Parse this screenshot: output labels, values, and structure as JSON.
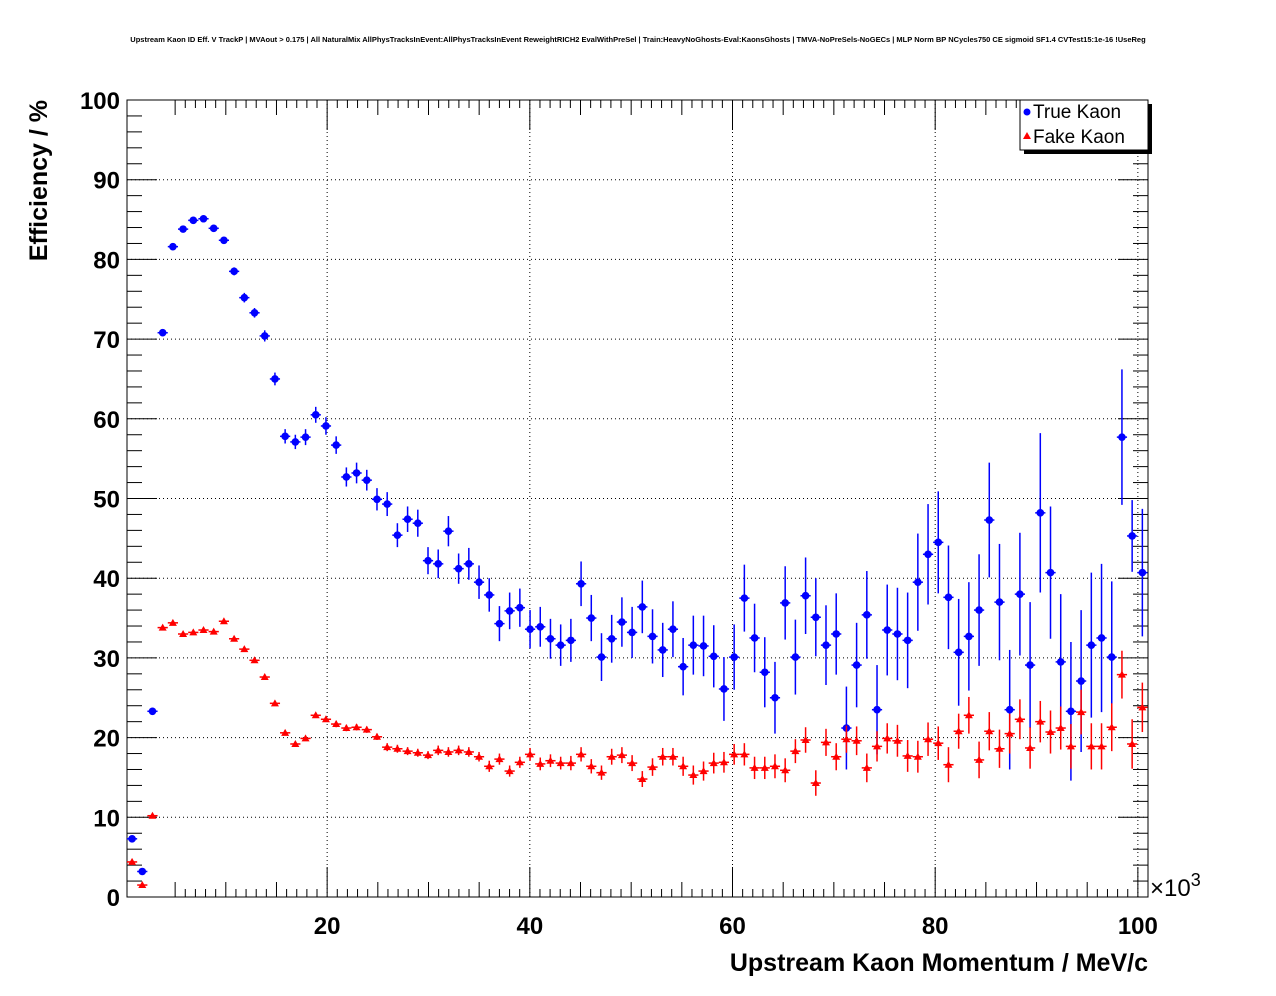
{
  "chart_data": {
    "type": "scatter",
    "title": "Upstream Kaon ID Eff. V TrackP | MVAout > 0.175 | All NaturalMix AllPhysTracksInEvent:AllPhysTracksInEvent ReweightRICH2 EvalWithPreSel | Train:HeavyNoGhosts-Eval:KaonsGhosts | TMVA-NoPreSels-NoGECs | MLP Norm BP NCycles750 CE sigmoid SF1.4 CVTest15:1e-16 !UseReg",
    "xlabel": "Upstream Kaon Momentum / MeV/c",
    "ylabel": "Efficiency / %",
    "x_multiplier": "×10",
    "x_multiplier_exp": "3",
    "xlim": [
      0.25,
      101.0
    ],
    "ylim": [
      0,
      100
    ],
    "xticks": [
      "20",
      "40",
      "60",
      "80",
      "100"
    ],
    "yticks": [
      "0",
      "10",
      "20",
      "30",
      "40",
      "50",
      "60",
      "70",
      "80",
      "90",
      "100"
    ],
    "grid": true,
    "legend_position": "top-right",
    "x_start": 0.75,
    "bin_width": 1.007,
    "series": [
      {
        "name": "True Kaon",
        "color": "#0000ff",
        "marker": "circle",
        "values": [
          7.3,
          3.2,
          23.3,
          70.8,
          81.6,
          83.8,
          84.9,
          85.1,
          83.9,
          82.4,
          78.5,
          75.2,
          73.3,
          70.4,
          65.0,
          57.8,
          57.1,
          57.7,
          60.5,
          59.1,
          56.7,
          52.7,
          53.2,
          52.3,
          49.9,
          49.3,
          45.4,
          47.4,
          46.9,
          42.2,
          41.8,
          45.9,
          41.2,
          41.8,
          39.5,
          37.9,
          34.3,
          35.9,
          36.3,
          33.6,
          33.9,
          32.4,
          31.6,
          32.2,
          39.3,
          35.0,
          30.1,
          32.4,
          34.5,
          33.2,
          36.4,
          32.7,
          31.0,
          33.6,
          28.9,
          31.6,
          31.5,
          30.2,
          26.1,
          30.1,
          37.5,
          32.5,
          28.2,
          25.0,
          36.9,
          30.1,
          37.8,
          35.1,
          31.6,
          33.0,
          21.2,
          29.1,
          35.4,
          23.5,
          33.5,
          33.0,
          32.2,
          39.5,
          43.0,
          44.5,
          37.6,
          30.7,
          32.7,
          36.0,
          47.3,
          37.0,
          23.5,
          38.0,
          29.1,
          48.2,
          40.7,
          29.5,
          23.3,
          27.1,
          31.6,
          32.5,
          30.1,
          57.7,
          45.3,
          40.7
        ],
        "errors": [
          0.4,
          0.3,
          0.4,
          0.4,
          0.4,
          0.4,
          0.4,
          0.4,
          0.4,
          0.4,
          0.5,
          0.6,
          0.6,
          0.7,
          0.8,
          0.9,
          0.9,
          1.0,
          1.0,
          1.1,
          1.1,
          1.2,
          1.3,
          1.3,
          1.4,
          1.5,
          1.5,
          1.6,
          1.7,
          1.7,
          1.8,
          1.9,
          1.9,
          2.0,
          2.1,
          2.1,
          2.2,
          2.3,
          2.4,
          2.4,
          2.5,
          2.5,
          2.6,
          2.7,
          2.8,
          2.9,
          3.0,
          3.0,
          3.1,
          3.2,
          3.3,
          3.4,
          3.4,
          3.5,
          3.6,
          3.7,
          3.8,
          3.9,
          4.0,
          4.1,
          4.2,
          4.3,
          4.4,
          4.5,
          4.6,
          4.7,
          4.8,
          4.9,
          5.0,
          5.1,
          5.2,
          5.3,
          5.5,
          5.6,
          5.7,
          5.8,
          6.0,
          6.1,
          6.3,
          6.4,
          6.5,
          6.7,
          6.8,
          7.0,
          7.2,
          7.3,
          7.5,
          7.7,
          7.9,
          10.0,
          8.3,
          8.5,
          8.7,
          8.9,
          9.1,
          9.3,
          9.5,
          8.5,
          4.5,
          8.0
        ]
      },
      {
        "name": "Fake Kaon",
        "color": "#ff0000",
        "marker": "triangle",
        "values": [
          4.4,
          1.5,
          10.2,
          33.8,
          34.4,
          33.0,
          33.2,
          33.5,
          33.3,
          34.6,
          32.4,
          31.1,
          29.7,
          27.6,
          24.3,
          20.6,
          19.2,
          19.9,
          22.8,
          22.3,
          21.7,
          21.2,
          21.3,
          21.0,
          20.1,
          18.8,
          18.6,
          18.3,
          18.1,
          17.8,
          18.4,
          18.2,
          18.4,
          18.2,
          17.6,
          16.4,
          17.3,
          15.8,
          16.9,
          17.9,
          16.7,
          17.1,
          16.8,
          16.8,
          17.9,
          16.4,
          15.6,
          17.6,
          17.8,
          16.8,
          14.8,
          16.3,
          17.6,
          17.6,
          16.4,
          15.3,
          15.8,
          16.8,
          16.9,
          17.9,
          17.9,
          16.2,
          16.2,
          16.4,
          15.9,
          18.3,
          19.7,
          14.3,
          19.4,
          17.6,
          19.8,
          19.6,
          16.2,
          18.9,
          19.9,
          19.6,
          17.7,
          17.6,
          19.8,
          19.3,
          16.6,
          20.8,
          22.8,
          17.2,
          20.8,
          18.6,
          20.5,
          22.3,
          18.7,
          22.0,
          20.7,
          21.2,
          18.9,
          23.2,
          18.9,
          18.9,
          21.3,
          27.9,
          19.2,
          23.8
        ],
        "errors": [
          0.2,
          0.2,
          0.2,
          0.2,
          0.2,
          0.2,
          0.2,
          0.2,
          0.2,
          0.2,
          0.3,
          0.3,
          0.3,
          0.3,
          0.3,
          0.3,
          0.3,
          0.3,
          0.3,
          0.3,
          0.4,
          0.4,
          0.4,
          0.4,
          0.4,
          0.5,
          0.5,
          0.5,
          0.5,
          0.5,
          0.6,
          0.6,
          0.6,
          0.6,
          0.6,
          0.7,
          0.7,
          0.7,
          0.7,
          0.8,
          0.8,
          0.8,
          0.8,
          0.9,
          0.9,
          0.9,
          0.9,
          1.0,
          1.0,
          1.0,
          1.0,
          1.1,
          1.1,
          1.1,
          1.2,
          1.2,
          1.2,
          1.3,
          1.3,
          1.3,
          1.4,
          1.4,
          1.4,
          1.5,
          1.5,
          1.5,
          1.6,
          1.6,
          1.7,
          1.7,
          1.7,
          1.8,
          1.8,
          1.9,
          1.9,
          2.0,
          2.0,
          2.0,
          2.1,
          2.1,
          2.2,
          2.2,
          2.3,
          2.3,
          2.4,
          2.4,
          2.5,
          2.5,
          2.6,
          2.6,
          2.7,
          2.7,
          2.8,
          2.8,
          2.9,
          2.9,
          3.0,
          3.0,
          3.1,
          3.1
        ]
      }
    ]
  }
}
